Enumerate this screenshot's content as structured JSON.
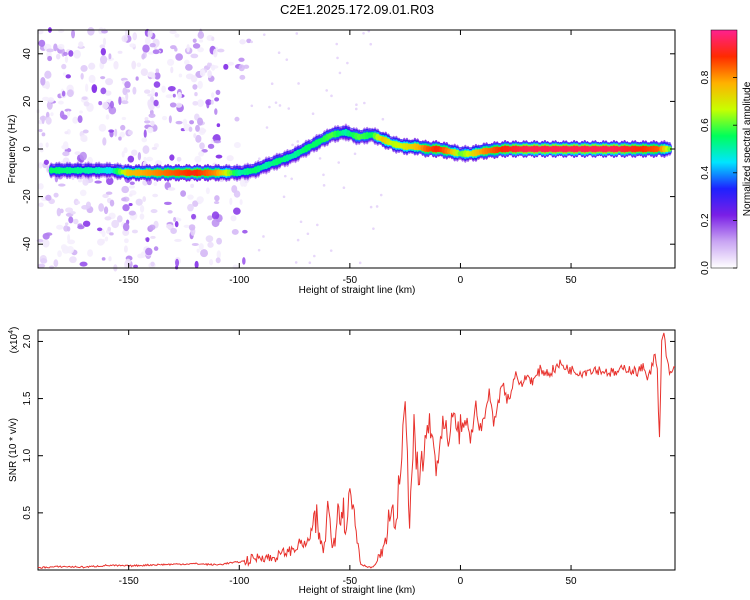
{
  "page": {
    "title": "C2E1.2025.172.09.01.R03"
  },
  "chart_data": [
    {
      "type": "heatmap",
      "xlabel": "Height of straight line (km)",
      "ylabel": "Frequency (Hz)",
      "xlim": [
        -191,
        97
      ],
      "ylim": [
        -50,
        50
      ],
      "xticks": [
        -150,
        -100,
        -50,
        0,
        50
      ],
      "yticks": [
        -40,
        -20,
        0,
        20,
        40
      ],
      "colorbar": {
        "label": "Normalized spectral amplitude",
        "range": [
          0,
          1
        ],
        "ticks": [
          0.0,
          0.2,
          0.4,
          0.6,
          0.8
        ],
        "tick_labels": [
          "0.0",
          "0.2",
          "0.4",
          "0.6",
          "0.8"
        ],
        "colormap": [
          "#ffffff",
          "#c9a5f3",
          "#7a1fe6",
          "#1e21ff",
          "#00e5ff",
          "#00ff5a",
          "#c8ff00",
          "#ffb000",
          "#ff2a00",
          "#ff2090"
        ]
      },
      "ridge": {
        "x": [
          -185,
          -165,
          -158,
          -150,
          -140,
          -130,
          -120,
          -110,
          -100,
          -93,
          -88,
          -82,
          -76,
          -70,
          -64,
          -58,
          -52,
          -46,
          -40,
          -35,
          -30,
          -25,
          -20,
          -15,
          -10,
          -5,
          0,
          5,
          10,
          20,
          30,
          40,
          50,
          60,
          70,
          80,
          90,
          95
        ],
        "y": [
          -9,
          -9,
          -9,
          -10,
          -10,
          -10,
          -10,
          -10,
          -10,
          -9,
          -7,
          -5,
          -3,
          0,
          3,
          6,
          7,
          5,
          6,
          4,
          2,
          1,
          1,
          0,
          0,
          -1,
          -2,
          -2,
          -1,
          0,
          0,
          0,
          0,
          0,
          0,
          0,
          0,
          0
        ],
        "amplitude": [
          0.55,
          0.5,
          0.45,
          0.75,
          0.8,
          0.85,
          0.9,
          0.8,
          0.5,
          0.55,
          0.5,
          0.55,
          0.5,
          0.55,
          0.55,
          0.6,
          0.5,
          0.6,
          0.55,
          0.75,
          0.65,
          0.7,
          0.75,
          0.85,
          0.9,
          0.8,
          0.6,
          0.7,
          0.8,
          0.9,
          0.95,
          0.95,
          0.95,
          0.95,
          0.95,
          0.9,
          0.85,
          0.6
        ]
      }
    },
    {
      "type": "line",
      "xlabel": "Height of straight line (km)",
      "ylabel": "SNR (10 * v/v)",
      "yscale_label": "(x10",
      "yscale_exp": "4",
      "xlim": [
        -191,
        97
      ],
      "ylim": [
        0,
        21000
      ],
      "xticks": [
        -150,
        -100,
        -50,
        0,
        50
      ],
      "yticks": [
        5000,
        10000,
        15000,
        20000
      ],
      "ytick_labels": [
        "0.5",
        "1.0",
        "1.5",
        "2.0"
      ],
      "color": "#e8322d",
      "series": [
        {
          "x": [
            -191,
            -180,
            -170,
            -160,
            -150,
            -140,
            -130,
            -120,
            -110,
            -105,
            -100,
            -95,
            -90,
            -85,
            -80,
            -75,
            -72,
            -70,
            -68,
            -65,
            -62,
            -60,
            -58,
            -55,
            -52,
            -50,
            -48,
            -45,
            -42,
            -40,
            -38,
            -35,
            -33,
            -31,
            -29,
            -27,
            -25,
            -23,
            -21,
            -19,
            -17,
            -15,
            -13,
            -11,
            -9,
            -7,
            -5,
            -3,
            -1,
            1,
            3,
            5,
            7,
            9,
            11,
            13,
            15,
            17,
            19,
            21,
            23,
            25,
            27,
            30,
            33,
            36,
            40,
            45,
            50,
            55,
            60,
            65,
            70,
            75,
            80,
            83,
            85,
            87,
            88,
            89,
            90,
            91,
            92,
            93,
            95,
            97
          ],
          "y": [
            200,
            300,
            250,
            400,
            350,
            450,
            500,
            550,
            450,
            600,
            700,
            900,
            1200,
            1000,
            1500,
            1800,
            2500,
            2000,
            3000,
            4000,
            1500,
            5500,
            2000,
            6000,
            4500,
            6500,
            5000,
            500,
            300,
            200,
            600,
            1800,
            3000,
            6000,
            3500,
            10000,
            14500,
            5000,
            12000,
            7500,
            9500,
            12500,
            11500,
            9000,
            11000,
            12500,
            10000,
            14000,
            11500,
            12500,
            13000,
            11500,
            14500,
            12000,
            13500,
            15500,
            13000,
            14500,
            16500,
            15000,
            15500,
            17500,
            16000,
            17000,
            16500,
            17500,
            17200,
            18000,
            17500,
            17300,
            17600,
            17400,
            17200,
            17700,
            17300,
            17800,
            16800,
            18300,
            18600,
            17400,
            10500,
            20000,
            21000,
            18500,
            17000,
            17800
          ]
        }
      ]
    }
  ]
}
